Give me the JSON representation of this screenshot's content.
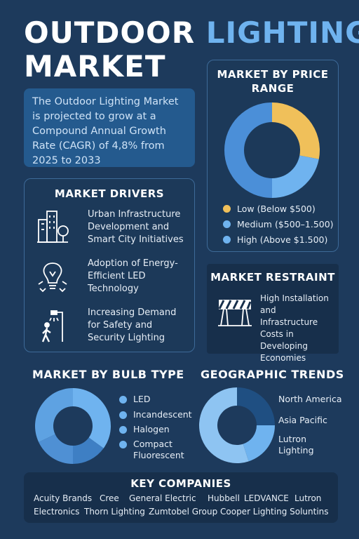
{
  "header": {
    "title_part1": "OUTDOOR",
    "title_part2": "LIGHTING",
    "title_line2": "MARKET"
  },
  "intro": {
    "text": "The Outdoor Lighting Market is projected to grow at a Compound Annual Growth Rate (CAGR) of 4,8% from 2025 to 2033"
  },
  "drivers": {
    "title": "MARKET DRIVERS",
    "items": [
      {
        "icon": "city-buildings-icon",
        "text": "Urban Infrastructure Development and Smart City Initiatives"
      },
      {
        "icon": "led-bulb-icon",
        "text": "Adoption of Energy-Efficient LED Technology"
      },
      {
        "icon": "street-light-pedestrian-icon",
        "text": "Increasing Demand for Safety and Security Lighting"
      }
    ]
  },
  "price": {
    "title": "MARKET BY PRICE RANGE",
    "legend": [
      {
        "label": "Low (Below $500)",
        "color": "#f0c05a"
      },
      {
        "label": "Medium ($500–1.500)",
        "color": "#6fb3ef"
      },
      {
        "label": "High (Above $1.500)",
        "color": "#6fb3ef"
      }
    ]
  },
  "restraint": {
    "title": "MARKET RESTRAINT",
    "icon": "road-barrier-icon",
    "text": "High Installation and Infrastructure Costs in Developing Economies"
  },
  "bulb": {
    "title": "MARKET BY BULB TYPE",
    "legend": [
      {
        "label": "LED",
        "color": "#6fb3ef"
      },
      {
        "label": "Incandescent",
        "color": "#6fb3ef"
      },
      {
        "label": "Halogen",
        "color": "#6fb3ef"
      },
      {
        "label": "Compact Fluorescent",
        "color": "#6fb3ef"
      }
    ]
  },
  "geo": {
    "title": "GEOGRAPHIC TRENDS",
    "labels": [
      "North America",
      "Asia Pacific",
      "Lutron Lighting"
    ]
  },
  "companies": {
    "title": "KEY COMPANIES",
    "row1": [
      "Acuity Brands",
      "Cree",
      "General Electric",
      "Hubbell",
      "LEDVANCE",
      "Lutron"
    ],
    "row2": [
      "Electronics",
      "Thorn Lighting",
      "Zumtobel Group",
      "Cooper Lighting Soluntins"
    ]
  },
  "chart_data": [
    {
      "type": "pie",
      "title": "MARKET BY PRICE RANGE",
      "categories": [
        "Low (Below $500)",
        "Medium ($500–1.500)",
        "High (Above $1.500)"
      ],
      "values": [
        28,
        22,
        50
      ],
      "colors": [
        "#f0c05a",
        "#6fb3ef",
        "#4b8fd8"
      ],
      "donut": true,
      "legend": "bottom"
    },
    {
      "type": "pie",
      "title": "MARKET BY BULB TYPE",
      "categories": [
        "LED",
        "Incandescent",
        "Halogen",
        "Compact Fluorescent"
      ],
      "values": [
        35,
        15,
        18,
        32
      ],
      "colors": [
        "#6fb3ef",
        "#3e7fc4",
        "#4f90d4",
        "#5ea2e2"
      ],
      "donut": true,
      "legend": "right"
    },
    {
      "type": "pie",
      "title": "GEOGRAPHIC TRENDS",
      "categories": [
        "North America",
        "Asia Pacific",
        "Lutron Lighting"
      ],
      "values": [
        25,
        20,
        55
      ],
      "colors": [
        "#1f4f82",
        "#6fb3ef",
        "#8ec4f2"
      ],
      "donut": true,
      "legend": "right"
    }
  ]
}
